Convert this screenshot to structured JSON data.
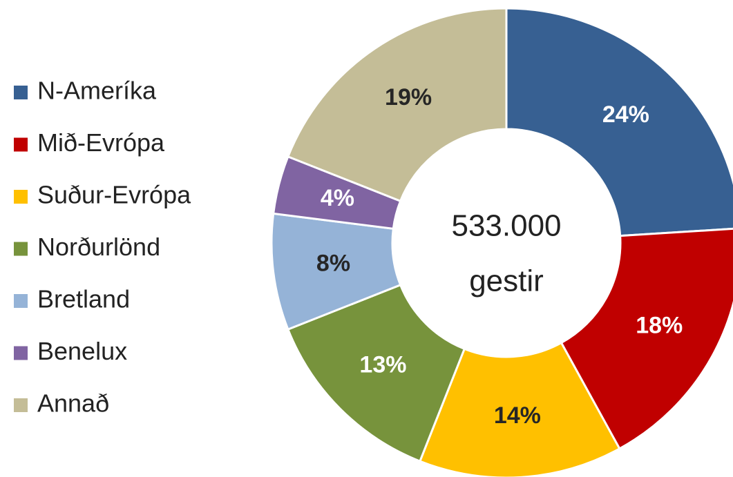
{
  "chart_data": {
    "type": "donut",
    "categories": [
      "N-Ameríka",
      "Mið-Evrópa",
      "Suður-Evrópa",
      "Norðurlönd",
      "Bretland",
      "Benelux",
      "Annað"
    ],
    "values": [
      24,
      18,
      14,
      13,
      8,
      4,
      19
    ],
    "value_labels": [
      "24%",
      "18%",
      "14%",
      "13%",
      "8%",
      "4%",
      "19%"
    ],
    "colors": [
      "#376092",
      "#c00000",
      "#ffc000",
      "#77933c",
      "#95b3d7",
      "#8064a2",
      "#c4bd97"
    ],
    "label_colors": [
      "#ffffff",
      "#ffffff",
      "#262626",
      "#ffffff",
      "#262626",
      "#ffffff",
      "#262626"
    ],
    "center_label": [
      "533.000",
      "gestir"
    ],
    "legend": "left"
  }
}
